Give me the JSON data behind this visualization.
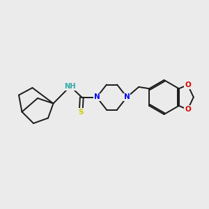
{
  "background_color": "#ebebeb",
  "bond_color": "#1a1a1a",
  "N_color": "#0000ee",
  "O_color": "#dd0000",
  "S_color": "#cccc00",
  "H_color": "#33aaaa",
  "figsize": [
    3.0,
    3.0
  ],
  "dpi": 100,
  "xlim": [
    0,
    10
  ],
  "ylim": [
    0,
    10
  ]
}
